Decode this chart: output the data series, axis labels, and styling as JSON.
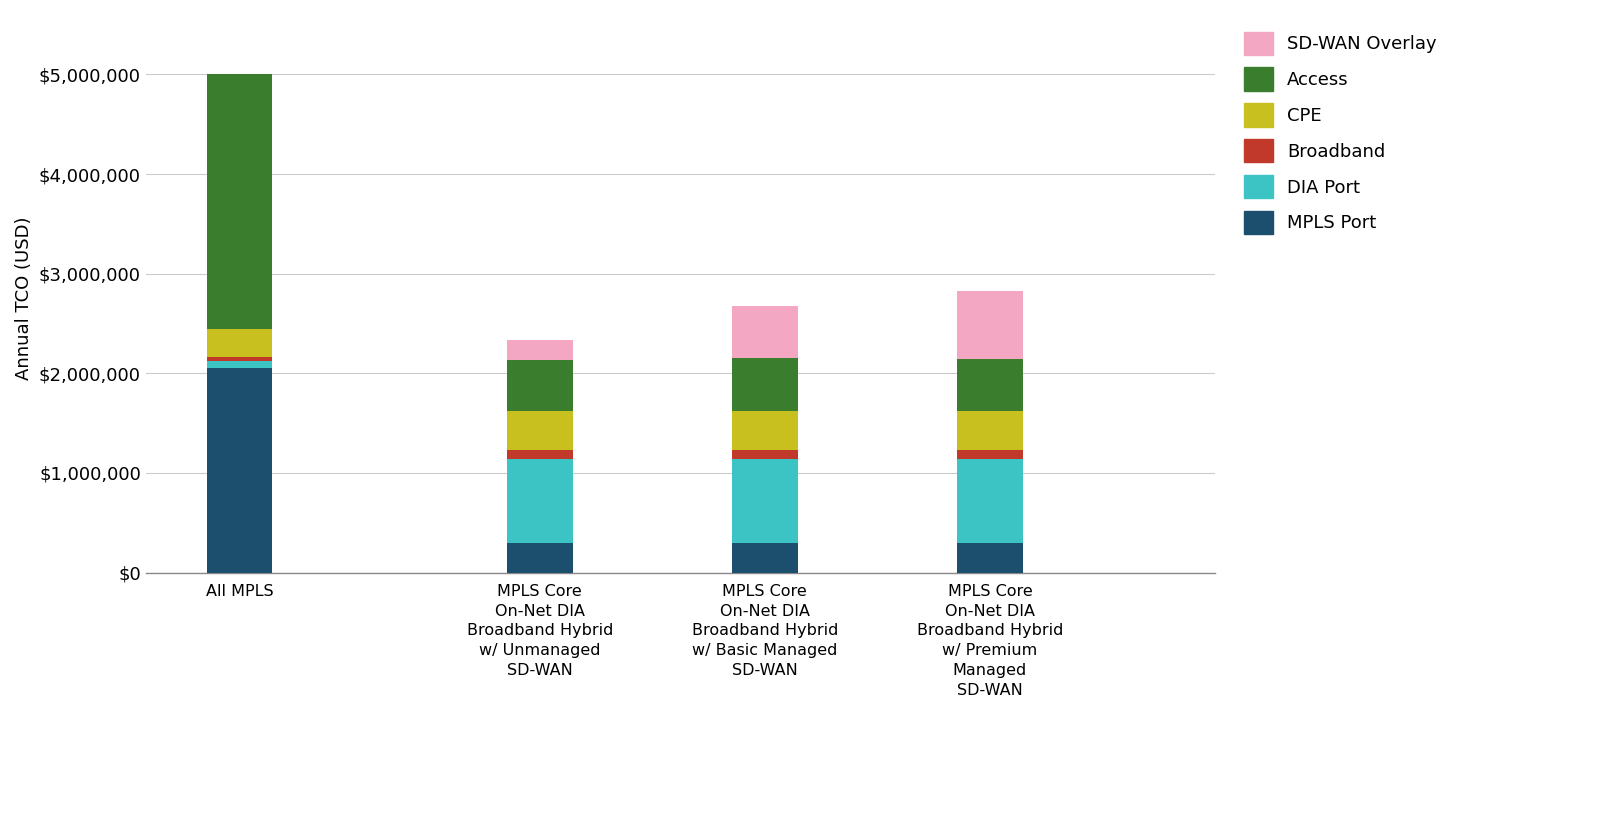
{
  "categories": [
    "All MPLS",
    "MPLS Core\nOn-Net DIA\nBroadband Hybrid\nw/ Unmanaged\nSD-WAN",
    "MPLS Core\nOn-Net DIA\nBroadband Hybrid\nw/ Basic Managed\nSD-WAN",
    "MPLS Core\nOn-Net DIA\nBroadband Hybrid\nw/ Premium\nManaged\nSD-WAN"
  ],
  "series": [
    {
      "name": "MPLS Port",
      "color": "#1c4f6e",
      "values": [
        2050000,
        300000,
        300000,
        300000
      ]
    },
    {
      "name": "DIA Port",
      "color": "#3cc4c4",
      "values": [
        70000,
        840000,
        840000,
        840000
      ]
    },
    {
      "name": "Broadband",
      "color": "#c0392b",
      "values": [
        45000,
        95000,
        95000,
        95000
      ]
    },
    {
      "name": "CPE",
      "color": "#c8c01e",
      "values": [
        280000,
        390000,
        390000,
        390000
      ]
    },
    {
      "name": "Access",
      "color": "#3a7d2c",
      "values": [
        2555000,
        510000,
        530000,
        520000
      ]
    },
    {
      "name": "SD-WAN Overlay",
      "color": "#f4a7c3",
      "values": [
        0,
        195000,
        520000,
        680000
      ]
    }
  ],
  "ylabel": "Annual TCO (USD)",
  "ylim": [
    0,
    5500000
  ],
  "yticks": [
    0,
    1000000,
    2000000,
    3000000,
    4000000,
    5000000
  ],
  "ytick_labels": [
    "$0",
    "$1,000,000",
    "$2,000,000",
    "$3,000,000",
    "$4,000,000",
    "$5,000,000"
  ],
  "bar_width": 0.35,
  "background_color": "#ffffff",
  "grid_color": "#cccccc",
  "legend_order": [
    "SD-WAN Overlay",
    "Access",
    "CPE",
    "Broadband",
    "DIA Port",
    "MPLS Port"
  ],
  "x_positions": [
    0,
    1.6,
    2.8,
    4.0
  ],
  "xlim": [
    -0.5,
    5.2
  ]
}
